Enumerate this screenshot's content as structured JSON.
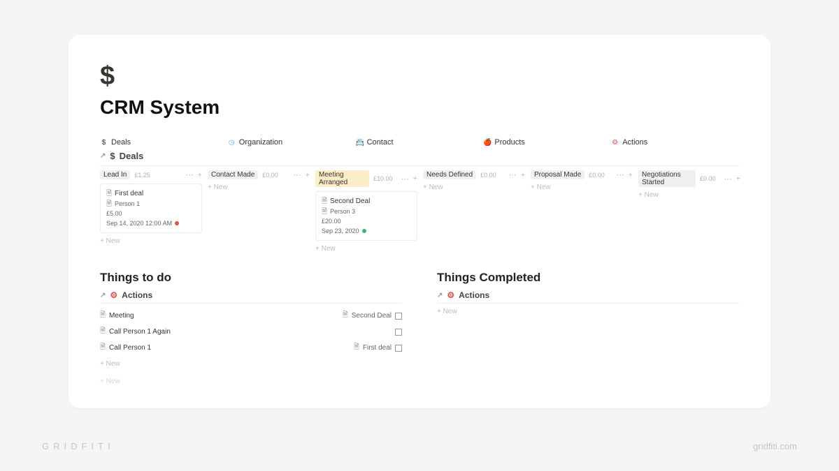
{
  "page": {
    "icon": "$",
    "title": "CRM System"
  },
  "nav": [
    {
      "icon": "$",
      "label": "Deals",
      "icon_color": "#333333"
    },
    {
      "icon": "◷",
      "label": "Organization",
      "icon_color": "#5aa9e6"
    },
    {
      "icon": "📇",
      "label": "Contact",
      "icon_color": "#1e6fd9"
    },
    {
      "icon": "🍎",
      "label": "Products",
      "icon_color": "#d9534f"
    },
    {
      "icon": "⚙",
      "label": "Actions",
      "icon_color": "#d9534f"
    }
  ],
  "deals_db": {
    "title": "Deals",
    "icon": "$"
  },
  "columns": [
    {
      "name": "Lead In",
      "tag_bg": "#f1f0ef",
      "amount": "£1.25",
      "cards": [
        {
          "title": "First deal",
          "person": "Person 1",
          "amount": "£5.00",
          "date": "Sep 14, 2020 12:00 AM",
          "dot_color": "#d9534f"
        }
      ]
    },
    {
      "name": "Contact Made",
      "tag_bg": "#f1f0ef",
      "amount": "£0.00",
      "cards": []
    },
    {
      "name": "Meeting Arranged",
      "tag_bg": "#fdecc8",
      "amount": "£10.00",
      "cards": [
        {
          "title": "Second Deal",
          "person": "Person 3",
          "amount": "£20.00",
          "date": "Sep 23, 2020",
          "dot_color": "#3cb371"
        }
      ]
    },
    {
      "name": "Needs Defined",
      "tag_bg": "#f1f0ef",
      "amount": "£0.00",
      "cards": []
    },
    {
      "name": "Proposal Made",
      "tag_bg": "#f1f0ef",
      "amount": "£0.00",
      "cards": []
    },
    {
      "name": "Negotiations Started",
      "tag_bg": "#f1f0ef",
      "amount": "£0.00",
      "cards": []
    }
  ],
  "todo": {
    "title": "Things to do",
    "sub": "Actions",
    "items": [
      {
        "text": "Meeting",
        "rel": "Second Deal"
      },
      {
        "text": "Call Person 1 Again",
        "rel": ""
      },
      {
        "text": "Call Person 1",
        "rel": "First deal"
      }
    ]
  },
  "done": {
    "title": "Things Completed",
    "sub": "Actions"
  },
  "ui": {
    "new": "New"
  },
  "watermark": {
    "left": "GRIDFITI",
    "right": "gridfiti.com"
  }
}
